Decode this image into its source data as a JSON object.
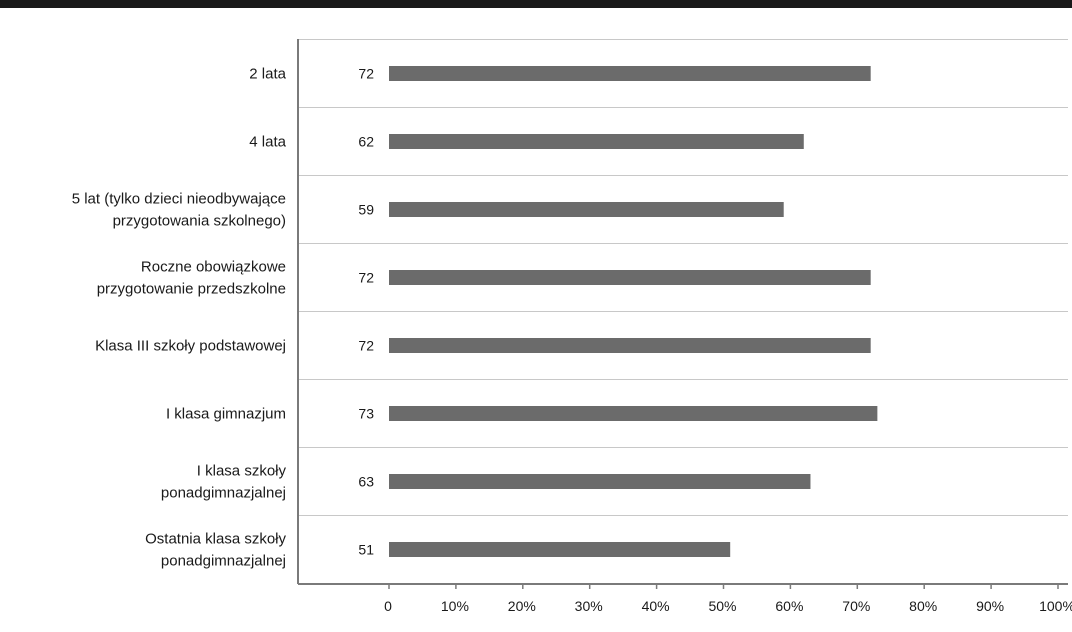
{
  "chart_data": {
    "type": "bar",
    "orientation": "horizontal",
    "categories": [
      [
        "2 lata"
      ],
      [
        "4 lata"
      ],
      [
        "5 lat (tylko dzieci nieodbywające",
        "przygotowania szkolnego)"
      ],
      [
        "Roczne obowiązkowe",
        "przygotowanie przedszkolne"
      ],
      [
        "Klasa III szkoły podstawowej"
      ],
      [
        "I klasa gimnazjum"
      ],
      [
        "I klasa szkoły",
        "ponadgimnazjalnej"
      ],
      [
        "Ostatnia klasa szkoły",
        "ponadgimnazjalnej"
      ]
    ],
    "values": [
      72,
      62,
      59,
      72,
      72,
      73,
      63,
      51
    ],
    "xlim": [
      0,
      100
    ],
    "x_ticks": [
      "0",
      "10%",
      "20%",
      "30%",
      "40%",
      "50%",
      "60%",
      "70%",
      "80%",
      "90%",
      "100%"
    ],
    "grid": "horizontal separators between categories",
    "colors": {
      "bar": "#6b6b6b",
      "axis": "#7a7a7a",
      "grid": "#c8c8c8",
      "top_rule": "#1a1a1a"
    }
  }
}
